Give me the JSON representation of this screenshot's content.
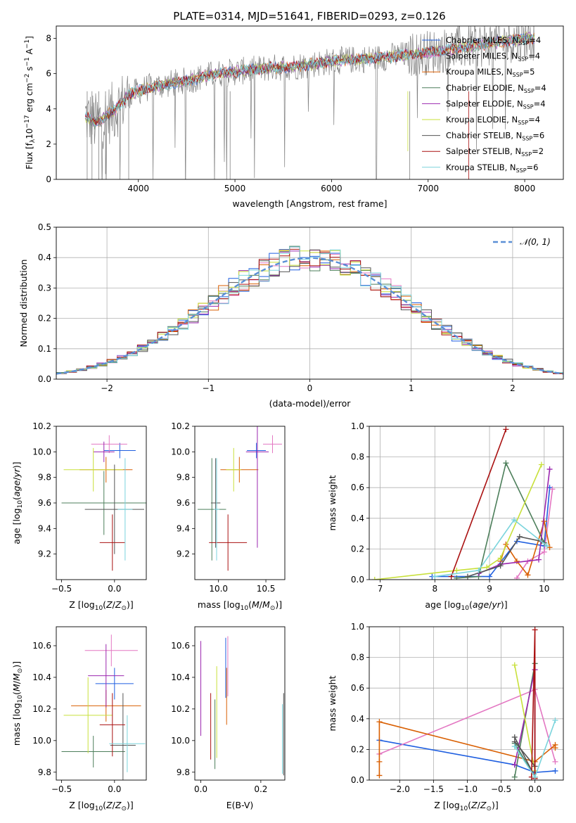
{
  "figure": {
    "title": "PLATE=0314, MJD=51641, FIBERID=0293, z=0.126"
  },
  "colors": {
    "Chabrier MILES": "#1f5fe0",
    "Salpeter MILES": "#e377c2",
    "Kroupa MILES": "#d95f02",
    "Chabrier ELODIE": "#4d7f5b",
    "Salpeter ELODIE": "#9b27af",
    "Kroupa ELODIE": "#c8e03a",
    "Chabrier STELIB": "#555555",
    "Salpeter STELIB": "#aa1111",
    "Kroupa STELIB": "#7ad4dc",
    "data": "#808080",
    "normal": "#5b8fd6"
  },
  "chart_data": [
    {
      "id": "spectrum",
      "type": "line",
      "title": "PLATE=0314, MJD=51641, FIBERID=0293, z=0.126",
      "xlabel": "wavelength [Angstrom, rest frame]",
      "ylabel": "Flux [f_λ 10^-17 erg cm^-2 s^-1 A^-1]",
      "xlim": [
        3150,
        8400
      ],
      "ylim": [
        0,
        8.7
      ],
      "xticks": [
        4000,
        5000,
        6000,
        7000,
        8000
      ],
      "yticks": [
        0,
        2,
        4,
        6,
        8
      ],
      "legend_position": "top-right",
      "legend": [
        {
          "model": "Chabrier MILES",
          "nssp": "4"
        },
        {
          "model": "Salpeter MILES",
          "nssp": "4"
        },
        {
          "model": "Kroupa MILES",
          "nssp": "5"
        },
        {
          "model": "Chabrier ELODIE",
          "nssp": "4"
        },
        {
          "model": "Salpeter ELODIE",
          "nssp": "4"
        },
        {
          "model": "Kroupa ELODIE",
          "nssp": "4"
        },
        {
          "model": "Chabrier STELIB",
          "nssp": "6"
        },
        {
          "model": "Salpeter STELIB",
          "nssp": "2"
        },
        {
          "model": "Kroupa STELIB",
          "nssp": "6"
        }
      ],
      "continuum": {
        "x": [
          3450,
          3550,
          3650,
          3750,
          3900,
          4100,
          4300,
          4500,
          4800,
          5000,
          5300,
          5600,
          6000,
          6500,
          7000,
          7500,
          8000,
          8100
        ],
        "y": [
          3.6,
          3.2,
          3.5,
          3.9,
          4.8,
          5.2,
          5.4,
          5.6,
          6.0,
          6.1,
          6.3,
          6.4,
          6.7,
          6.9,
          7.2,
          7.6,
          8.0,
          8.0
        ]
      },
      "grid": false
    },
    {
      "id": "residuals",
      "type": "histogram",
      "xlabel": "(data-model)/error",
      "ylabel": "Normed distribution",
      "xlim": [
        -2.5,
        2.5
      ],
      "ylim": [
        0,
        0.5
      ],
      "xticks": [
        -2,
        -1,
        0,
        1,
        2
      ],
      "yticks": [
        0.0,
        0.1,
        0.2,
        0.3,
        0.4,
        0.5
      ],
      "bin_width": 0.1,
      "legend_label": "N(0,1)",
      "legend_position": "top-right",
      "grid": true
    },
    {
      "id": "age-vs-Z",
      "type": "errorbar",
      "xlabel": "Z [log10(Z/Z_sun)]",
      "ylabel": "age [log10(age/yr)]",
      "xlim": [
        -0.55,
        0.3
      ],
      "ylim": [
        9.0,
        10.2
      ],
      "xticks": [
        -0.5,
        0.0
      ],
      "yticks": [
        9.2,
        9.4,
        9.6,
        9.8,
        10.0,
        10.2
      ],
      "points": [
        {
          "model": "Chabrier MILES",
          "x": 0.05,
          "y": 10.01,
          "xerr": 0.15,
          "yerr": 0.06
        },
        {
          "model": "Salpeter MILES",
          "x": -0.05,
          "y": 10.06,
          "xerr": 0.17,
          "yerr": 0.07
        },
        {
          "model": "Kroupa MILES",
          "x": -0.08,
          "y": 9.86,
          "xerr": 0.25,
          "yerr": 0.1
        },
        {
          "model": "Chabrier ELODIE",
          "x": -0.1,
          "y": 9.6,
          "xerr": 0.4,
          "yerr": 0.25
        },
        {
          "model": "Salpeter ELODIE",
          "x": -0.1,
          "y": 10.0,
          "xerr": 0.1,
          "yerr": 0.08
        },
        {
          "model": "Kroupa ELODIE",
          "x": -0.2,
          "y": 9.86,
          "xerr": 0.28,
          "yerr": 0.17
        },
        {
          "model": "Chabrier STELIB",
          "x": 0.0,
          "y": 9.55,
          "xerr": 0.28,
          "yerr": 0.35
        },
        {
          "model": "Salpeter STELIB",
          "x": -0.02,
          "y": 9.29,
          "xerr": 0.12,
          "yerr": 0.22
        },
        {
          "model": "Kroupa STELIB",
          "x": 0.1,
          "y": 9.55,
          "xerr": 0.07,
          "yerr": 0.4
        }
      ]
    },
    {
      "id": "age-vs-mass",
      "type": "errorbar",
      "xlabel": "mass [log10(M/M_sun)]",
      "ylabel": "",
      "xlim": [
        9.75,
        10.7
      ],
      "ylim": [
        9.0,
        10.2
      ],
      "xticks": [
        10.0,
        10.5
      ],
      "yticks": [
        9.2,
        9.4,
        9.6,
        9.8,
        10.0,
        10.2
      ],
      "points": [
        {
          "model": "Chabrier MILES",
          "x": 10.4,
          "y": 10.01,
          "xerr": 0.1,
          "yerr": 0.06
        },
        {
          "model": "Salpeter MILES",
          "x": 10.57,
          "y": 10.06,
          "xerr": 0.1,
          "yerr": 0.07
        },
        {
          "model": "Kroupa MILES",
          "x": 10.22,
          "y": 9.86,
          "xerr": 0.2,
          "yerr": 0.1
        },
        {
          "model": "Chabrier ELODIE",
          "x": 9.93,
          "y": 9.55,
          "xerr": 0.15,
          "yerr": 0.4
        },
        {
          "model": "Salpeter ELODIE",
          "x": 10.41,
          "y": 10.0,
          "xerr": 0.12,
          "yerr": 0.75
        },
        {
          "model": "Kroupa ELODIE",
          "x": 10.16,
          "y": 9.86,
          "xerr": 0.08,
          "yerr": 0.17
        },
        {
          "model": "Chabrier STELIB",
          "x": 9.97,
          "y": 9.6,
          "xerr": 0.05,
          "yerr": 0.35
        },
        {
          "model": "Salpeter STELIB",
          "x": 10.1,
          "y": 9.29,
          "xerr": 0.2,
          "yerr": 0.22
        },
        {
          "model": "Kroupa STELIB",
          "x": 9.98,
          "y": 9.55,
          "xerr": 0.03,
          "yerr": 0.4
        }
      ]
    },
    {
      "id": "weight-vs-age",
      "type": "line",
      "xlabel": "age [log10(age/yr)]",
      "ylabel": "mass weight",
      "xlim": [
        6.8,
        10.35
      ],
      "ylim": [
        0,
        1.0
      ],
      "xticks": [
        7,
        8,
        9,
        10
      ],
      "yticks": [
        0.0,
        0.2,
        0.4,
        0.6,
        0.8,
        1.0
      ],
      "grid": true,
      "series": [
        {
          "model": "Chabrier MILES",
          "x": [
            7.95,
            9.0,
            9.5,
            10.0,
            10.1
          ],
          "y": [
            0.02,
            0.02,
            0.25,
            0.22,
            0.6
          ]
        },
        {
          "model": "Salpeter MILES",
          "x": [
            9.5,
            9.7,
            10.0,
            10.15
          ],
          "y": [
            0.01,
            0.12,
            0.18,
            0.59
          ]
        },
        {
          "model": "Kroupa MILES",
          "x": [
            9.2,
            9.3,
            9.5,
            9.7,
            10.0,
            10.1
          ],
          "y": [
            0.12,
            0.23,
            0.12,
            0.03,
            0.38,
            0.21
          ]
        },
        {
          "model": "Chabrier ELODIE",
          "x": [
            8.4,
            8.8,
            9.3,
            10.0
          ],
          "y": [
            0.01,
            0.02,
            0.76,
            0.24
          ]
        },
        {
          "model": "Salpeter ELODIE",
          "x": [
            8.8,
            9.2,
            9.9,
            10.1
          ],
          "y": [
            0.04,
            0.1,
            0.13,
            0.72
          ]
        },
        {
          "model": "Kroupa ELODIE",
          "x": [
            6.9,
            8.4,
            8.95,
            9.2,
            9.95
          ],
          "y": [
            0.0,
            0.06,
            0.08,
            0.14,
            0.75
          ]
        },
        {
          "model": "Chabrier STELIB",
          "x": [
            8.6,
            9.2,
            9.55,
            9.95
          ],
          "y": [
            0.02,
            0.09,
            0.28,
            0.25
          ]
        },
        {
          "model": "Salpeter STELIB",
          "x": [
            8.3,
            9.3
          ],
          "y": [
            0.02,
            0.98
          ]
        },
        {
          "model": "Kroupa STELIB",
          "x": [
            8.0,
            8.8,
            9.45,
            10.05
          ],
          "y": [
            0.02,
            0.06,
            0.39,
            0.22
          ]
        }
      ]
    },
    {
      "id": "mass-vs-Z",
      "type": "errorbar",
      "xlabel": "Z [log10(Z/Z_sun)]",
      "ylabel": "mass [log10(M/M_sun)]",
      "xlim": [
        -0.55,
        0.3
      ],
      "ylim": [
        9.75,
        10.72
      ],
      "xticks": [
        -0.5,
        0.0
      ],
      "yticks": [
        9.8,
        10.0,
        10.2,
        10.4,
        10.6
      ],
      "points": [
        {
          "model": "Chabrier MILES",
          "x": 0.0,
          "y": 10.36,
          "xerr": 0.18,
          "yerr": 0.1
        },
        {
          "model": "Salpeter MILES",
          "x": -0.03,
          "y": 10.57,
          "xerr": 0.25,
          "yerr": 0.1
        },
        {
          "model": "Kroupa MILES",
          "x": -0.08,
          "y": 10.22,
          "xerr": 0.33,
          "yerr": 0.1
        },
        {
          "model": "Chabrier ELODIE",
          "x": -0.2,
          "y": 9.93,
          "xerr": 0.3,
          "yerr": 0.1
        },
        {
          "model": "Salpeter ELODIE",
          "x": -0.08,
          "y": 10.41,
          "xerr": 0.17,
          "yerr": 0.2
        },
        {
          "model": "Kroupa ELODIE",
          "x": -0.25,
          "y": 10.16,
          "xerr": 0.23,
          "yerr": 0.24
        },
        {
          "model": "Chabrier STELIB",
          "x": 0.08,
          "y": 9.97,
          "xerr": 0.12,
          "yerr": 0.33
        },
        {
          "model": "Salpeter STELIB",
          "x": -0.02,
          "y": 10.1,
          "xerr": 0.12,
          "yerr": 0.2
        },
        {
          "model": "Kroupa STELIB",
          "x": 0.12,
          "y": 9.98,
          "xerr": 0.17,
          "yerr": 0.18
        }
      ]
    },
    {
      "id": "mass-vs-ebv",
      "type": "errorbar",
      "xlabel": "E(B-V)",
      "ylabel": "",
      "xlim": [
        -0.02,
        0.28
      ],
      "ylim": [
        9.75,
        10.72
      ],
      "xticks": [
        0.0,
        0.2
      ],
      "yticks": [
        9.8,
        10.0,
        10.2,
        10.4,
        10.6
      ],
      "points": [
        {
          "model": "Chabrier MILES",
          "x": 0.083,
          "y": 10.46,
          "yerr": 0.19
        },
        {
          "model": "Salpeter MILES",
          "x": 0.09,
          "y": 10.47,
          "yerr": 0.19
        },
        {
          "model": "Kroupa MILES",
          "x": 0.086,
          "y": 10.28,
          "yerr": 0.18
        },
        {
          "model": "Chabrier ELODIE",
          "x": 0.047,
          "y": 10.04,
          "yerr": 0.22
        },
        {
          "model": "Salpeter ELODIE",
          "x": 0.0,
          "y": 10.33,
          "yerr": 0.3
        },
        {
          "model": "Kroupa ELODIE",
          "x": 0.053,
          "y": 10.18,
          "yerr": 0.29
        },
        {
          "model": "Chabrier STELIB",
          "x": 0.276,
          "y": 10.04,
          "yerr": 0.26
        },
        {
          "model": "Salpeter STELIB",
          "x": 0.033,
          "y": 10.09,
          "yerr": 0.21
        },
        {
          "model": "Kroupa STELIB",
          "x": 0.272,
          "y": 10.01,
          "yerr": 0.22
        }
      ]
    },
    {
      "id": "weight-vs-Z",
      "type": "line",
      "xlabel": "Z [log10(Z/Z_sun)]",
      "ylabel": "mass weight",
      "xlim": [
        -2.45,
        0.42
      ],
      "ylim": [
        0,
        1.0
      ],
      "xticks": [
        -2.0,
        -1.5,
        -1.0,
        -0.5,
        0.0
      ],
      "yticks": [
        0.0,
        0.2,
        0.4,
        0.6,
        0.8,
        1.0
      ],
      "grid": true,
      "series": [
        {
          "model": "Chabrier MILES",
          "x": [
            -2.3,
            -0.3,
            0.0,
            0.3
          ],
          "y": [
            0.26,
            0.1,
            0.05,
            0.06
          ]
        },
        {
          "model": "Salpeter MILES",
          "x": [
            -2.3,
            0.0,
            0.3
          ],
          "y": [
            0.17,
            0.59,
            0.12
          ]
        },
        {
          "model": "Kroupa MILES",
          "x": [
            -2.3,
            -2.3,
            -2.3,
            0.0,
            0.3,
            0.3
          ],
          "y": [
            0.03,
            0.12,
            0.38,
            0.12,
            0.23,
            0.21
          ]
        },
        {
          "model": "Chabrier ELODIE",
          "x": [
            -0.3,
            0.0,
            0.0,
            -0.3
          ],
          "y": [
            0.02,
            0.76,
            0.02,
            0.24
          ]
        },
        {
          "model": "Salpeter ELODIE",
          "x": [
            -0.3,
            0.0,
            0.0
          ],
          "y": [
            0.1,
            0.72,
            0.02
          ]
        },
        {
          "model": "Kroupa ELODIE",
          "x": [
            -0.3,
            0.0,
            0.0
          ],
          "y": [
            0.75,
            0.06,
            0.02
          ]
        },
        {
          "model": "Chabrier STELIB",
          "x": [
            -0.3,
            0.0,
            0.0,
            -0.3
          ],
          "y": [
            0.25,
            0.09,
            0.02,
            0.28
          ]
        },
        {
          "model": "Salpeter STELIB",
          "x": [
            -0.05,
            0.0,
            0.0
          ],
          "y": [
            0.02,
            0.98,
            0.01
          ]
        },
        {
          "model": "Kroupa STELIB",
          "x": [
            -0.3,
            0.0,
            0.3
          ],
          "y": [
            0.22,
            0.02,
            0.39
          ]
        }
      ]
    }
  ]
}
